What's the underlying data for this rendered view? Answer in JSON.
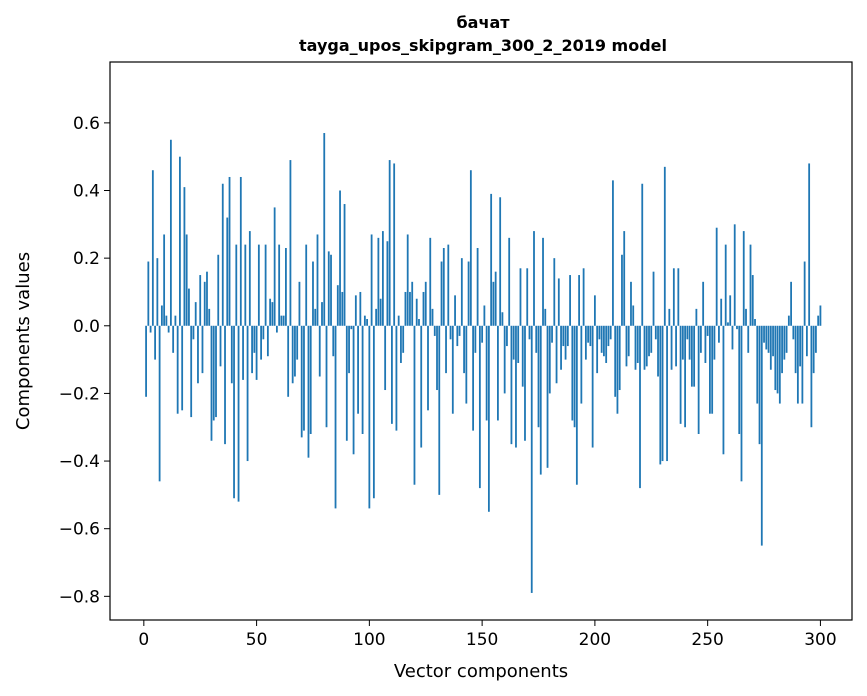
{
  "chart_data": {
    "type": "bar",
    "title": "бачат",
    "subtitle": "tayga_upos_skipgram_300_2_2019 model",
    "xlabel": "Vector components",
    "ylabel": "Components values",
    "xlim": [
      -15,
      314
    ],
    "ylim": [
      -0.87,
      0.78
    ],
    "xticks": [
      0,
      50,
      100,
      150,
      200,
      250,
      300
    ],
    "yticks": [
      -0.8,
      -0.6,
      -0.4,
      -0.2,
      0.0,
      0.2,
      0.4,
      0.6
    ],
    "ytick_labels": [
      "−0.8",
      "−0.6",
      "−0.4",
      "−0.2",
      "0.0",
      "0.2",
      "0.4",
      "0.6"
    ],
    "grid": false,
    "legend": "none",
    "bar_color": "#1f77b4",
    "x_start": 1,
    "values": [
      -0.21,
      0.19,
      -0.02,
      0.46,
      -0.1,
      0.2,
      -0.46,
      0.06,
      0.27,
      0.03,
      -0.02,
      0.55,
      -0.08,
      0.03,
      -0.26,
      0.5,
      -0.25,
      0.41,
      0.27,
      0.11,
      -0.27,
      -0.04,
      0.07,
      -0.17,
      0.15,
      -0.14,
      0.13,
      0.16,
      0.05,
      -0.34,
      -0.28,
      -0.27,
      0.21,
      -0.12,
      0.42,
      -0.35,
      0.32,
      0.44,
      -0.17,
      -0.51,
      0.24,
      -0.52,
      0.44,
      -0.16,
      0.24,
      -0.4,
      0.28,
      -0.14,
      -0.08,
      -0.16,
      0.24,
      -0.1,
      -0.04,
      0.24,
      -0.09,
      0.08,
      0.07,
      0.35,
      -0.02,
      0.24,
      0.03,
      0.03,
      0.23,
      -0.21,
      0.49,
      -0.17,
      -0.15,
      -0.1,
      0.13,
      -0.33,
      -0.31,
      0.24,
      -0.39,
      -0.32,
      0.19,
      0.05,
      0.27,
      -0.15,
      0.07,
      0.57,
      -0.3,
      0.22,
      0.21,
      -0.09,
      -0.54,
      0.12,
      0.4,
      0.1,
      0.36,
      -0.34,
      -0.14,
      -0.01,
      -0.38,
      0.09,
      -0.26,
      0.1,
      -0.32,
      0.03,
      0.02,
      -0.54,
      0.27,
      -0.51,
      0.05,
      0.26,
      0.08,
      0.28,
      -0.19,
      0.25,
      0.49,
      -0.29,
      0.48,
      -0.31,
      0.03,
      -0.11,
      -0.08,
      0.1,
      0.27,
      0.1,
      0.13,
      -0.47,
      0.08,
      0.02,
      -0.36,
      0.1,
      0.13,
      -0.25,
      0.26,
      0.05,
      -0.03,
      -0.19,
      -0.5,
      0.19,
      0.23,
      -0.14,
      0.24,
      -0.04,
      -0.26,
      0.09,
      -0.06,
      -0.03,
      0.2,
      -0.14,
      -0.23,
      0.19,
      0.46,
      -0.31,
      -0.08,
      0.23,
      -0.48,
      -0.05,
      0.06,
      -0.28,
      -0.55,
      0.39,
      0.13,
      0.16,
      -0.28,
      0.38,
      0.04,
      -0.2,
      -0.06,
      0.26,
      -0.35,
      -0.1,
      -0.36,
      -0.11,
      0.17,
      -0.18,
      -0.34,
      0.17,
      -0.04,
      -0.79,
      0.28,
      -0.08,
      -0.3,
      -0.44,
      0.26,
      0.05,
      -0.42,
      -0.2,
      -0.05,
      0.2,
      -0.17,
      0.14,
      -0.13,
      -0.06,
      -0.1,
      -0.06,
      0.15,
      -0.28,
      -0.3,
      -0.47,
      0.15,
      -0.23,
      0.17,
      -0.1,
      -0.05,
      -0.06,
      -0.36,
      0.09,
      -0.14,
      -0.04,
      -0.08,
      -0.09,
      -0.11,
      -0.06,
      -0.04,
      0.43,
      -0.21,
      -0.26,
      -0.19,
      0.21,
      0.28,
      -0.12,
      -0.09,
      0.13,
      0.06,
      -0.13,
      -0.11,
      -0.48,
      0.42,
      -0.13,
      -0.12,
      -0.09,
      -0.08,
      0.16,
      -0.04,
      -0.15,
      -0.41,
      -0.4,
      0.47,
      -0.4,
      0.05,
      -0.13,
      0.17,
      -0.12,
      0.17,
      -0.29,
      -0.1,
      -0.3,
      -0.04,
      -0.1,
      -0.18,
      -0.18,
      0.05,
      -0.32,
      -0.08,
      0.13,
      -0.11,
      -0.03,
      -0.26,
      -0.26,
      -0.1,
      0.29,
      -0.05,
      0.08,
      -0.38,
      0.24,
      0.01,
      0.09,
      -0.07,
      0.3,
      -0.01,
      -0.32,
      -0.46,
      0.28,
      0.05,
      -0.08,
      0.24,
      0.15,
      0.02,
      -0.23,
      -0.35,
      -0.65,
      -0.05,
      -0.07,
      -0.08,
      -0.13,
      -0.09,
      -0.19,
      -0.2,
      -0.23,
      -0.14,
      -0.1,
      -0.08,
      0.03,
      0.13,
      -0.04,
      -0.14,
      -0.23,
      -0.12,
      -0.23,
      0.19,
      -0.09,
      0.48,
      -0.3,
      -0.14,
      -0.08,
      0.03,
      0.06
    ]
  }
}
